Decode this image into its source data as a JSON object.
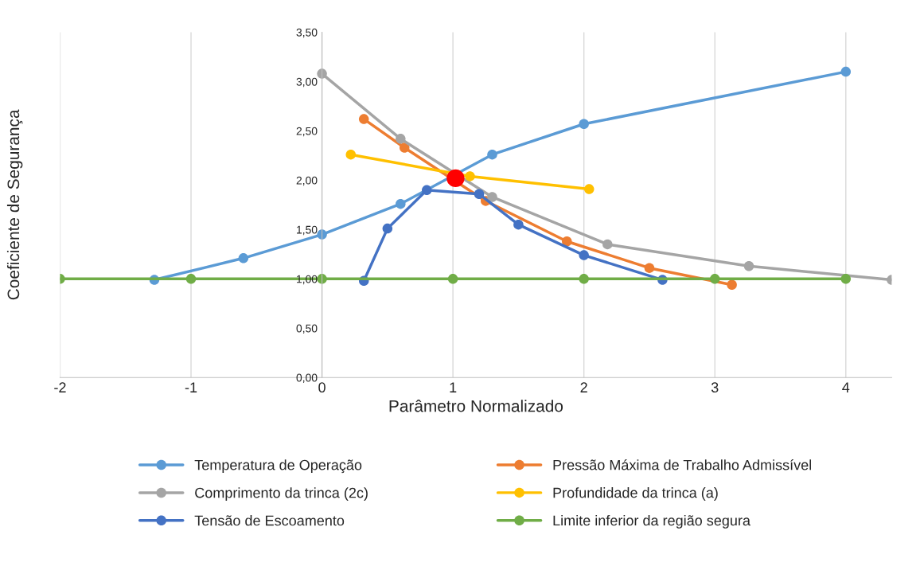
{
  "chart_data": {
    "type": "line",
    "xlabel": "Parâmetro Normalizado",
    "ylabel": "Coeficiente de Segurança",
    "xlim": [
      -2,
      4.35
    ],
    "xticks": [
      -2,
      -1,
      0,
      1,
      2,
      3,
      4
    ],
    "ylim": [
      0,
      3.5
    ],
    "yticks": [
      {
        "value": 0,
        "label": "0,00"
      },
      {
        "value": 0.5,
        "label": "0,50"
      },
      {
        "value": 1,
        "label": "1,00"
      },
      {
        "value": 1.5,
        "label": "1,50"
      },
      {
        "value": 2,
        "label": "2,00"
      },
      {
        "value": 2.5,
        "label": "2,50"
      },
      {
        "value": 3,
        "label": "3,00"
      },
      {
        "value": 3.5,
        "label": "3,50"
      }
    ],
    "grid": "x",
    "legend": "bottom",
    "marker": "circle",
    "series": [
      {
        "name": "Temperatura de Operação",
        "color": "#5b9bd5",
        "x": [
          -1.28,
          -0.6,
          0,
          0.6,
          1.3,
          2,
          4
        ],
        "values": [
          0.99,
          1.21,
          1.45,
          1.76,
          2.26,
          2.57,
          3.1
        ]
      },
      {
        "name": "Pressão Máxima de Trabalho Admissível",
        "color": "#ed7d31",
        "x": [
          0.32,
          0.63,
          1.25,
          1.87,
          2.5,
          3.13
        ],
        "values": [
          2.62,
          2.33,
          1.79,
          1.38,
          1.11,
          0.94
        ]
      },
      {
        "name": "Comprimento da trinca (2c)",
        "color": "#a5a5a5",
        "x": [
          0,
          0.6,
          1.3,
          2.18,
          3.26,
          4.35
        ],
        "values": [
          3.08,
          2.42,
          1.83,
          1.35,
          1.13,
          0.99
        ]
      },
      {
        "name": "Profundidade da trinca (a)",
        "color": "#ffc000",
        "x": [
          0.22,
          1.13,
          2.04
        ],
        "values": [
          2.26,
          2.04,
          1.91
        ]
      },
      {
        "name": "Tensão de Escoamento",
        "color": "#4472c4",
        "x": [
          0.32,
          0.5,
          0.8,
          1.2,
          1.5,
          2,
          2.6
        ],
        "values": [
          0.98,
          1.51,
          1.9,
          1.86,
          1.55,
          1.24,
          0.99
        ]
      },
      {
        "name": "Limite inferior da região segura",
        "color": "#70ad47",
        "x": [
          -2,
          -1,
          0,
          1,
          2,
          3,
          4
        ],
        "values": [
          1,
          1,
          1,
          1,
          1,
          1,
          1
        ]
      },
      {
        "type": "scatter",
        "color": "#ff0000",
        "x": [
          1.02
        ],
        "values": [
          2.02
        ]
      }
    ]
  }
}
